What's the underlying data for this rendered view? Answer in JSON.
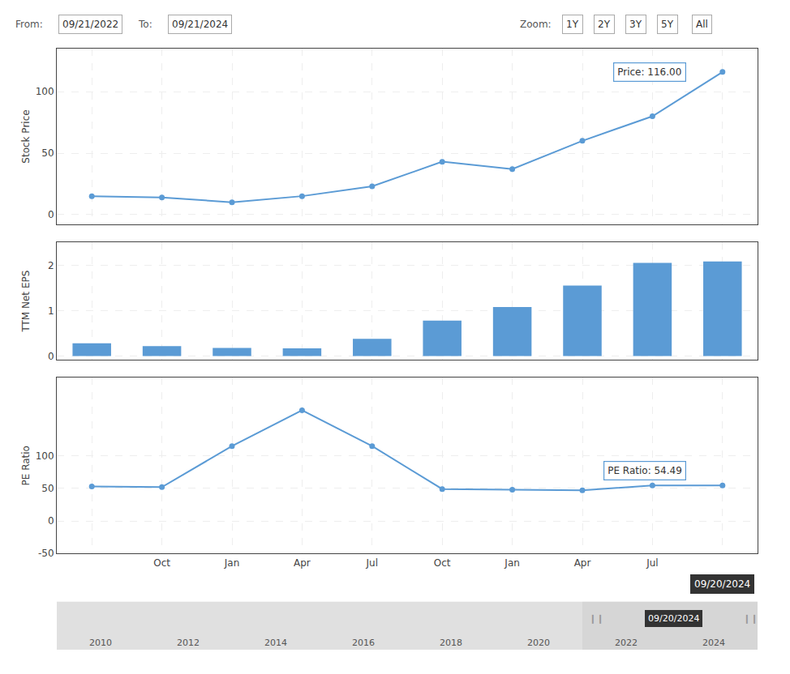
{
  "chart_data": [
    {
      "type": "header",
      "annotations": [
        [
          "From:",
          "09/21/2022",
          "To:",
          "09/21/2024"
        ],
        [
          "Zoom:",
          "1Y",
          "2Y",
          "3Y",
          "5Y",
          "All"
        ]
      ]
    },
    {
      "type": "line",
      "categories": [
        null,
        "Oct",
        "Jan",
        "Apr",
        "Jul",
        "Oct",
        "Jan",
        "Apr",
        "Jul",
        null
      ],
      "values": [
        15,
        14,
        10,
        15,
        23,
        43,
        37,
        60,
        80,
        116
      ],
      "color": "#5b9bd5",
      "marker": "circle",
      "ylabel": "Stock Price",
      "ylim": [
        -8,
        135
      ],
      "yticks": [
        0,
        50,
        100
      ],
      "grid": true,
      "tick_labels": "y",
      "annotations": [
        {
          "text": "Price: 116.00",
          "x": 9,
          "y": 116
        }
      ]
    },
    {
      "type": "bar",
      "categories": [
        null,
        "Oct",
        "Jan",
        "Apr",
        "Jul",
        "Oct",
        "Jan",
        "Apr",
        "Jul",
        null
      ],
      "values": [
        0.28,
        0.22,
        0.18,
        0.17,
        0.38,
        0.78,
        1.08,
        1.55,
        2.05,
        2.08
      ],
      "color": "#5b9bd5",
      "ylabel": "TTM Net EPS",
      "ylim": [
        -0.08,
        2.5
      ],
      "yticks": [
        0,
        1,
        2
      ],
      "grid": true,
      "tick_labels": "y"
    },
    {
      "type": "line",
      "categories": [
        null,
        "Oct",
        "Jan",
        "Apr",
        "Jul",
        "Oct",
        "Jan",
        "Apr",
        "Jul",
        null
      ],
      "values": [
        53,
        52,
        115,
        170,
        115,
        49,
        48,
        47,
        54.49,
        54.49
      ],
      "color": "#5b9bd5",
      "marker": "circle",
      "ylabel": "PE Ratio",
      "ylim": [
        -50,
        220
      ],
      "yticks": [
        -50,
        0,
        50,
        100
      ],
      "grid": true,
      "annotations": [
        {
          "text": "PE Ratio: 54.49",
          "x": 9,
          "y": 54.49
        },
        {
          "text": "09/20/2024",
          "x": 9
        }
      ]
    },
    {
      "type": "timeline",
      "categories": [
        "2010",
        "2012",
        "2014",
        "2016",
        "2018",
        "2020",
        "2022",
        "2024"
      ],
      "annotations": [
        "09/20/2024",
        "❙❙",
        "❙❙"
      ]
    }
  ]
}
